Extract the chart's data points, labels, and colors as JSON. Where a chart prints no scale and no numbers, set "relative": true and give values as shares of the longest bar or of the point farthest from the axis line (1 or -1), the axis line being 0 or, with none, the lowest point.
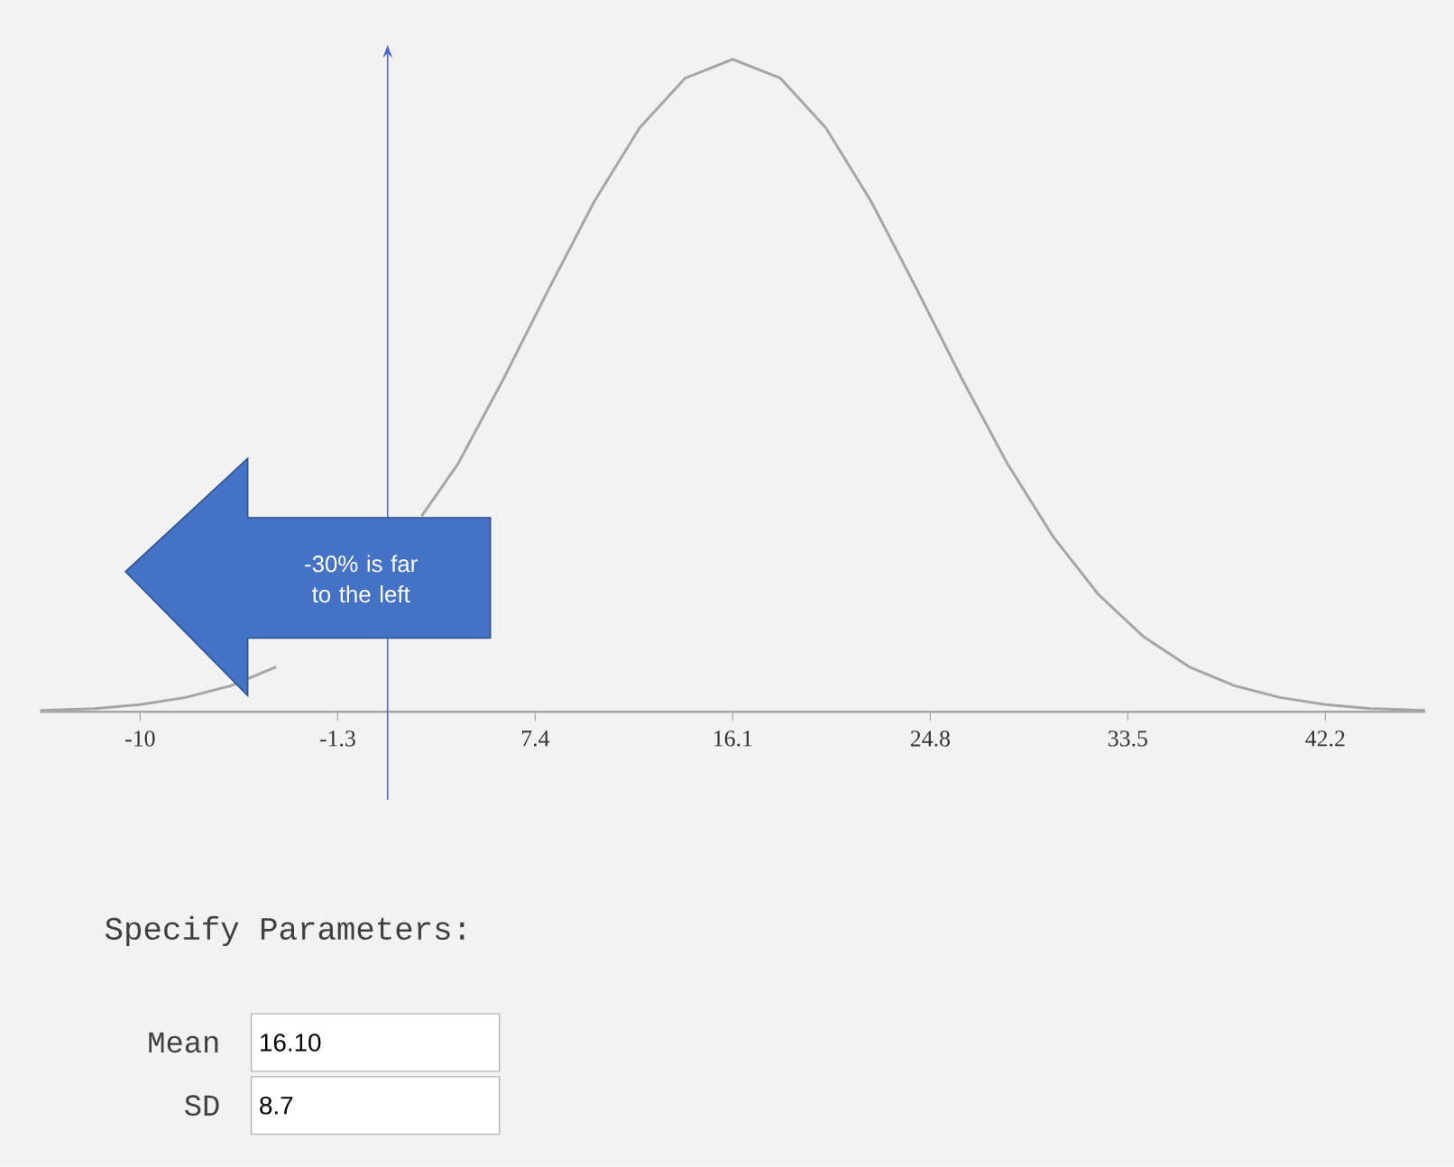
{
  "chart_data": {
    "type": "line",
    "relative": true,
    "x": [
      -14.4,
      -12,
      -10,
      -8,
      -6,
      -4,
      -2,
      0,
      2,
      2.4,
      4,
      6,
      8,
      10,
      12,
      14,
      16.1,
      18.2,
      20.2,
      22.2,
      24.2,
      26.2,
      28.2,
      30.2,
      32.2,
      34.2,
      36.2,
      38.2,
      40.2,
      42.2,
      44.2,
      46.6
    ],
    "series": [
      {
        "color": "#a6a6a6",
        "values": [
          0.002,
          0.005,
          0.011,
          0.022,
          0.04,
          0.069,
          null,
          null,
          null,
          0.3,
          0.38,
          0.51,
          0.648,
          0.782,
          0.895,
          0.971,
          1,
          0.971,
          0.895,
          0.782,
          0.648,
          0.51,
          0.38,
          0.269,
          0.18,
          0.115,
          0.069,
          0.04,
          0.022,
          0.011,
          0.005,
          0.002
        ]
      }
    ],
    "xlim": [
      -14.4,
      46.6
    ],
    "xticks": [
      -10,
      -1.3,
      7.4,
      16.1,
      24.8,
      33.5,
      42.2
    ],
    "ref_lines": [
      {
        "axis": "x",
        "value": 0.9,
        "color": "#4a6bd6"
      }
    ],
    "annotations": [
      "-30% is far to the left",
      "Specify Parameters:",
      "Mean",
      "16.10",
      "SD",
      "8.7"
    ]
  }
}
